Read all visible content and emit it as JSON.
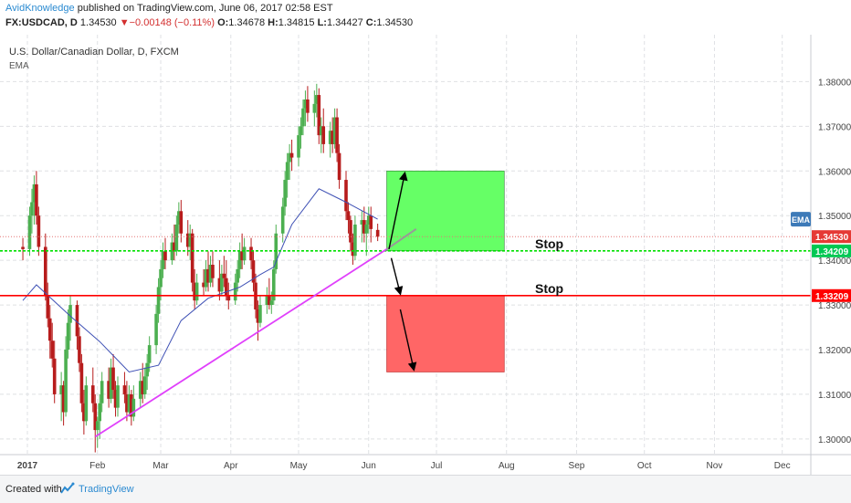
{
  "header": {
    "author": "AvidKnowledge",
    "published": "published on TradingView.com, June 06, 2017 02:58 EST",
    "symbol": "FX:USDCAD, D",
    "last": "1.34530",
    "change": "▼−0.00148 (−0.11%)",
    "o_label": "O:",
    "o": "1.34678",
    "h_label": "H:",
    "h": "1.34815",
    "l_label": "L:",
    "l": "1.34427",
    "c_label": "C:",
    "c": "1.34530"
  },
  "colors": {
    "up": "#4caf50",
    "down": "#b71c1c",
    "ema": "#3f51b5",
    "trendline": "#e040fb",
    "stop_red": "#ff0000",
    "stop_green": "#00e000",
    "target_box": "#66ff66",
    "loss_box": "#ff6666",
    "brand": "#2a8ad1"
  },
  "chart_data": {
    "type": "candlestick",
    "title": "U.S. Dollar/Canadian Dollar, D, FXCM",
    "indicator": "EMA",
    "ylim": [
      1.2965,
      1.3905
    ],
    "y_ticks": [
      "1.30000",
      "1.31000",
      "1.32000",
      "1.33000",
      "1.34000",
      "1.35000",
      "1.36000",
      "1.37000",
      "1.38000"
    ],
    "x_ticks": [
      "2017",
      "Feb",
      "Mar",
      "Apr",
      "May",
      "Jun",
      "Jul",
      "Aug",
      "Sep",
      "Oct",
      "Nov",
      "Dec"
    ],
    "grid": true,
    "price_labels": [
      {
        "text": "1.34530",
        "value": 1.3453,
        "color": "#e53935"
      },
      {
        "text": "1.34209",
        "value": 1.3421,
        "color": "#00c853"
      },
      {
        "text": "1.33209",
        "value": 1.3321,
        "color": "#ff0000"
      }
    ],
    "ema_badge": "EMA",
    "ema_value": 1.3492,
    "green_stop_level": 1.3421,
    "red_stop_level": 1.3321,
    "current_price": 1.3453,
    "annotations": [
      {
        "text": "Stop",
        "value": 1.3421
      },
      {
        "text": "Stop",
        "value": 1.3321
      }
    ],
    "trendline": {
      "x": [
        "2017-01-31",
        "2017-06-09",
        "2017-06-22"
      ],
      "y": [
        1.3005,
        1.3425,
        1.347
      ]
    },
    "target_box": {
      "x": [
        "2017-06-09",
        "2017-07-31"
      ],
      "y": [
        1.3421,
        1.36
      ]
    },
    "loss_box": {
      "x": [
        "2017-06-09",
        "2017-07-31"
      ],
      "y": [
        1.315,
        1.3321
      ]
    },
    "arrows": [
      {
        "x": [
          "2017-06-10",
          "2017-06-17"
        ],
        "y": [
          1.3425,
          1.3595
        ]
      },
      {
        "x": [
          "2017-06-11",
          "2017-06-15"
        ],
        "y": [
          1.3405,
          1.3325
        ]
      },
      {
        "x": [
          "2017-06-15",
          "2017-06-21"
        ],
        "y": [
          1.329,
          1.3155
        ]
      }
    ],
    "ema_anchors": [
      {
        "x": "2016-12-30",
        "y": 1.331
      },
      {
        "x": "2017-01-05",
        "y": 1.3345
      },
      {
        "x": "2017-01-20",
        "y": 1.3275
      },
      {
        "x": "2017-02-02",
        "y": 1.3218
      },
      {
        "x": "2017-02-15",
        "y": 1.315
      },
      {
        "x": "2017-02-28",
        "y": 1.3165
      },
      {
        "x": "2017-03-10",
        "y": 1.3265
      },
      {
        "x": "2017-03-22",
        "y": 1.3315
      },
      {
        "x": "2017-04-05",
        "y": 1.334
      },
      {
        "x": "2017-04-14",
        "y": 1.3368
      },
      {
        "x": "2017-04-20",
        "y": 1.3385
      },
      {
        "x": "2017-04-28",
        "y": 1.348
      },
      {
        "x": "2017-05-10",
        "y": 1.356
      },
      {
        "x": "2017-05-22",
        "y": 1.353
      },
      {
        "x": "2017-06-05",
        "y": 1.3492
      }
    ],
    "ohlc": [
      {
        "x": "2016-12-30",
        "o": 1.343,
        "h": 1.345,
        "l": 1.34,
        "c": 1.3425
      },
      {
        "x": "2017-01-02",
        "o": 1.3425,
        "h": 1.352,
        "l": 1.341,
        "c": 1.35
      },
      {
        "x": "2017-01-03",
        "o": 1.35,
        "h": 1.356,
        "l": 1.346,
        "c": 1.353
      },
      {
        "x": "2017-01-04",
        "o": 1.353,
        "h": 1.359,
        "l": 1.348,
        "c": 1.357
      },
      {
        "x": "2017-01-05",
        "o": 1.357,
        "h": 1.36,
        "l": 1.348,
        "c": 1.35
      },
      {
        "x": "2017-01-06",
        "o": 1.35,
        "h": 1.352,
        "l": 1.341,
        "c": 1.343
      },
      {
        "x": "2017-01-09",
        "o": 1.343,
        "h": 1.346,
        "l": 1.331,
        "c": 1.332
      },
      {
        "x": "2017-01-10",
        "o": 1.332,
        "h": 1.335,
        "l": 1.325,
        "c": 1.327
      },
      {
        "x": "2017-01-11",
        "o": 1.327,
        "h": 1.33,
        "l": 1.318,
        "c": 1.322
      },
      {
        "x": "2017-01-12",
        "o": 1.322,
        "h": 1.326,
        "l": 1.316,
        "c": 1.318
      },
      {
        "x": "2017-01-13",
        "o": 1.318,
        "h": 1.322,
        "l": 1.308,
        "c": 1.31
      },
      {
        "x": "2017-01-16",
        "o": 1.31,
        "h": 1.315,
        "l": 1.304,
        "c": 1.312
      },
      {
        "x": "2017-01-17",
        "o": 1.312,
        "h": 1.313,
        "l": 1.303,
        "c": 1.306
      },
      {
        "x": "2017-01-18",
        "o": 1.306,
        "h": 1.323,
        "l": 1.305,
        "c": 1.32
      },
      {
        "x": "2017-01-19",
        "o": 1.32,
        "h": 1.329,
        "l": 1.318,
        "c": 1.326
      },
      {
        "x": "2017-01-20",
        "o": 1.326,
        "h": 1.332,
        "l": 1.322,
        "c": 1.33
      },
      {
        "x": "2017-01-23",
        "o": 1.33,
        "h": 1.331,
        "l": 1.32,
        "c": 1.323
      },
      {
        "x": "2017-01-24",
        "o": 1.323,
        "h": 1.325,
        "l": 1.315,
        "c": 1.317
      },
      {
        "x": "2017-01-25",
        "o": 1.317,
        "h": 1.319,
        "l": 1.306,
        "c": 1.308
      },
      {
        "x": "2017-01-26",
        "o": 1.308,
        "h": 1.311,
        "l": 1.301,
        "c": 1.304
      },
      {
        "x": "2017-01-27",
        "o": 1.304,
        "h": 1.314,
        "l": 1.303,
        "c": 1.312
      },
      {
        "x": "2017-01-30",
        "o": 1.312,
        "h": 1.316,
        "l": 1.306,
        "c": 1.308
      },
      {
        "x": "2017-01-31",
        "o": 1.308,
        "h": 1.31,
        "l": 1.297,
        "c": 1.302
      },
      {
        "x": "2017-02-01",
        "o": 1.302,
        "h": 1.305,
        "l": 1.298,
        "c": 1.304
      },
      {
        "x": "2017-02-02",
        "o": 1.304,
        "h": 1.31,
        "l": 1.3,
        "c": 1.308
      },
      {
        "x": "2017-02-03",
        "o": 1.308,
        "h": 1.315,
        "l": 1.306,
        "c": 1.313
      },
      {
        "x": "2017-02-06",
        "o": 1.313,
        "h": 1.316,
        "l": 1.307,
        "c": 1.309
      },
      {
        "x": "2017-02-07",
        "o": 1.309,
        "h": 1.318,
        "l": 1.308,
        "c": 1.316
      },
      {
        "x": "2017-02-08",
        "o": 1.316,
        "h": 1.319,
        "l": 1.309,
        "c": 1.311
      },
      {
        "x": "2017-02-09",
        "o": 1.311,
        "h": 1.313,
        "l": 1.305,
        "c": 1.307
      },
      {
        "x": "2017-02-10",
        "o": 1.307,
        "h": 1.314,
        "l": 1.305,
        "c": 1.312
      },
      {
        "x": "2017-02-13",
        "o": 1.312,
        "h": 1.315,
        "l": 1.308,
        "c": 1.31
      },
      {
        "x": "2017-02-14",
        "o": 1.31,
        "h": 1.313,
        "l": 1.304,
        "c": 1.306
      },
      {
        "x": "2017-02-15",
        "o": 1.306,
        "h": 1.312,
        "l": 1.305,
        "c": 1.31
      },
      {
        "x": "2017-02-16",
        "o": 1.31,
        "h": 1.311,
        "l": 1.303,
        "c": 1.305
      },
      {
        "x": "2017-02-17",
        "o": 1.305,
        "h": 1.312,
        "l": 1.304,
        "c": 1.309
      },
      {
        "x": "2017-02-20",
        "o": 1.309,
        "h": 1.315,
        "l": 1.307,
        "c": 1.313
      },
      {
        "x": "2017-02-21",
        "o": 1.313,
        "h": 1.317,
        "l": 1.308,
        "c": 1.31
      },
      {
        "x": "2017-02-22",
        "o": 1.31,
        "h": 1.316,
        "l": 1.309,
        "c": 1.314
      },
      {
        "x": "2017-02-23",
        "o": 1.314,
        "h": 1.319,
        "l": 1.311,
        "c": 1.317
      },
      {
        "x": "2017-02-24",
        "o": 1.317,
        "h": 1.323,
        "l": 1.315,
        "c": 1.321
      },
      {
        "x": "2017-02-27",
        "o": 1.321,
        "h": 1.33,
        "l": 1.319,
        "c": 1.328
      },
      {
        "x": "2017-02-28",
        "o": 1.328,
        "h": 1.336,
        "l": 1.326,
        "c": 1.334
      },
      {
        "x": "2017-03-01",
        "o": 1.334,
        "h": 1.34,
        "l": 1.331,
        "c": 1.338
      },
      {
        "x": "2017-03-02",
        "o": 1.338,
        "h": 1.344,
        "l": 1.336,
        "c": 1.342
      },
      {
        "x": "2017-03-03",
        "o": 1.342,
        "h": 1.345,
        "l": 1.338,
        "c": 1.34
      },
      {
        "x": "2017-03-06",
        "o": 1.34,
        "h": 1.346,
        "l": 1.339,
        "c": 1.344
      },
      {
        "x": "2017-03-07",
        "o": 1.344,
        "h": 1.348,
        "l": 1.34,
        "c": 1.342
      },
      {
        "x": "2017-03-08",
        "o": 1.342,
        "h": 1.35,
        "l": 1.341,
        "c": 1.348
      },
      {
        "x": "2017-03-09",
        "o": 1.348,
        "h": 1.353,
        "l": 1.346,
        "c": 1.351
      },
      {
        "x": "2017-03-10",
        "o": 1.351,
        "h": 1.3535,
        "l": 1.344,
        "c": 1.346
      },
      {
        "x": "2017-03-13",
        "o": 1.346,
        "h": 1.349,
        "l": 1.341,
        "c": 1.343
      },
      {
        "x": "2017-03-14",
        "o": 1.343,
        "h": 1.348,
        "l": 1.34,
        "c": 1.346
      },
      {
        "x": "2017-03-15",
        "o": 1.346,
        "h": 1.347,
        "l": 1.333,
        "c": 1.335
      },
      {
        "x": "2017-03-16",
        "o": 1.335,
        "h": 1.338,
        "l": 1.329,
        "c": 1.331
      },
      {
        "x": "2017-03-17",
        "o": 1.331,
        "h": 1.337,
        "l": 1.33,
        "c": 1.335
      },
      {
        "x": "2017-03-20",
        "o": 1.335,
        "h": 1.338,
        "l": 1.332,
        "c": 1.334
      },
      {
        "x": "2017-03-21",
        "o": 1.334,
        "h": 1.34,
        "l": 1.333,
        "c": 1.338
      },
      {
        "x": "2017-03-22",
        "o": 1.338,
        "h": 1.342,
        "l": 1.333,
        "c": 1.335
      },
      {
        "x": "2017-03-23",
        "o": 1.335,
        "h": 1.341,
        "l": 1.334,
        "c": 1.339
      },
      {
        "x": "2017-03-24",
        "o": 1.339,
        "h": 1.342,
        "l": 1.334,
        "c": 1.336
      },
      {
        "x": "2017-03-27",
        "o": 1.336,
        "h": 1.34,
        "l": 1.331,
        "c": 1.333
      },
      {
        "x": "2017-03-28",
        "o": 1.333,
        "h": 1.339,
        "l": 1.332,
        "c": 1.337
      },
      {
        "x": "2017-03-29",
        "o": 1.337,
        "h": 1.341,
        "l": 1.334,
        "c": 1.336
      },
      {
        "x": "2017-03-30",
        "o": 1.336,
        "h": 1.34,
        "l": 1.331,
        "c": 1.332
      },
      {
        "x": "2017-03-31",
        "o": 1.332,
        "h": 1.335,
        "l": 1.329,
        "c": 1.331
      },
      {
        "x": "2017-04-03",
        "o": 1.331,
        "h": 1.337,
        "l": 1.33,
        "c": 1.335
      },
      {
        "x": "2017-04-04",
        "o": 1.335,
        "h": 1.34,
        "l": 1.333,
        "c": 1.338
      },
      {
        "x": "2017-04-05",
        "o": 1.338,
        "h": 1.344,
        "l": 1.336,
        "c": 1.342
      },
      {
        "x": "2017-04-06",
        "o": 1.342,
        "h": 1.346,
        "l": 1.338,
        "c": 1.34
      },
      {
        "x": "2017-04-07",
        "o": 1.34,
        "h": 1.345,
        "l": 1.339,
        "c": 1.343
      },
      {
        "x": "2017-04-10",
        "o": 1.343,
        "h": 1.345,
        "l": 1.338,
        "c": 1.34
      },
      {
        "x": "2017-04-11",
        "o": 1.34,
        "h": 1.342,
        "l": 1.333,
        "c": 1.335
      },
      {
        "x": "2017-04-12",
        "o": 1.335,
        "h": 1.337,
        "l": 1.327,
        "c": 1.329
      },
      {
        "x": "2017-04-13",
        "o": 1.329,
        "h": 1.331,
        "l": 1.322,
        "c": 1.326
      },
      {
        "x": "2017-04-14",
        "o": 1.326,
        "h": 1.332,
        "l": 1.325,
        "c": 1.33
      },
      {
        "x": "2017-04-17",
        "o": 1.33,
        "h": 1.334,
        "l": 1.328,
        "c": 1.332
      },
      {
        "x": "2017-04-18",
        "o": 1.332,
        "h": 1.336,
        "l": 1.329,
        "c": 1.33
      },
      {
        "x": "2017-04-19",
        "o": 1.33,
        "h": 1.333,
        "l": 1.328,
        "c": 1.331
      },
      {
        "x": "2017-04-20",
        "o": 1.331,
        "h": 1.34,
        "l": 1.33,
        "c": 1.338
      },
      {
        "x": "2017-04-21",
        "o": 1.338,
        "h": 1.348,
        "l": 1.337,
        "c": 1.346
      },
      {
        "x": "2017-04-24",
        "o": 1.346,
        "h": 1.354,
        "l": 1.344,
        "c": 1.352
      },
      {
        "x": "2017-04-25",
        "o": 1.352,
        "h": 1.36,
        "l": 1.35,
        "c": 1.358
      },
      {
        "x": "2017-04-26",
        "o": 1.358,
        "h": 1.364,
        "l": 1.354,
        "c": 1.362
      },
      {
        "x": "2017-04-27",
        "o": 1.362,
        "h": 1.366,
        "l": 1.358,
        "c": 1.364
      },
      {
        "x": "2017-04-28",
        "o": 1.364,
        "h": 1.367,
        "l": 1.36,
        "c": 1.363
      },
      {
        "x": "2017-05-01",
        "o": 1.363,
        "h": 1.37,
        "l": 1.361,
        "c": 1.368
      },
      {
        "x": "2017-05-02",
        "o": 1.368,
        "h": 1.372,
        "l": 1.365,
        "c": 1.37
      },
      {
        "x": "2017-05-03",
        "o": 1.37,
        "h": 1.376,
        "l": 1.368,
        "c": 1.374
      },
      {
        "x": "2017-05-04",
        "o": 1.374,
        "h": 1.378,
        "l": 1.37,
        "c": 1.376
      },
      {
        "x": "2017-05-05",
        "o": 1.376,
        "h": 1.379,
        "l": 1.371,
        "c": 1.373
      },
      {
        "x": "2017-05-08",
        "o": 1.373,
        "h": 1.378,
        "l": 1.37,
        "c": 1.375
      },
      {
        "x": "2017-05-09",
        "o": 1.375,
        "h": 1.3795,
        "l": 1.372,
        "c": 1.377
      },
      {
        "x": "2017-05-10",
        "o": 1.377,
        "h": 1.3785,
        "l": 1.366,
        "c": 1.368
      },
      {
        "x": "2017-05-11",
        "o": 1.368,
        "h": 1.372,
        "l": 1.364,
        "c": 1.37
      },
      {
        "x": "2017-05-12",
        "o": 1.37,
        "h": 1.374,
        "l": 1.364,
        "c": 1.366
      },
      {
        "x": "2017-05-15",
        "o": 1.366,
        "h": 1.371,
        "l": 1.363,
        "c": 1.369
      },
      {
        "x": "2017-05-16",
        "o": 1.369,
        "h": 1.372,
        "l": 1.364,
        "c": 1.366
      },
      {
        "x": "2017-05-17",
        "o": 1.366,
        "h": 1.374,
        "l": 1.365,
        "c": 1.372
      },
      {
        "x": "2017-05-18",
        "o": 1.372,
        "h": 1.374,
        "l": 1.362,
        "c": 1.364
      },
      {
        "x": "2017-05-19",
        "o": 1.364,
        "h": 1.366,
        "l": 1.356,
        "c": 1.358
      },
      {
        "x": "2017-05-22",
        "o": 1.358,
        "h": 1.36,
        "l": 1.349,
        "c": 1.351
      },
      {
        "x": "2017-05-23",
        "o": 1.351,
        "h": 1.353,
        "l": 1.346,
        "c": 1.349
      },
      {
        "x": "2017-05-24",
        "o": 1.349,
        "h": 1.35,
        "l": 1.342,
        "c": 1.344
      },
      {
        "x": "2017-05-25",
        "o": 1.344,
        "h": 1.346,
        "l": 1.339,
        "c": 1.341
      },
      {
        "x": "2017-05-26",
        "o": 1.341,
        "h": 1.35,
        "l": 1.34,
        "c": 1.348
      },
      {
        "x": "2017-05-29",
        "o": 1.348,
        "h": 1.351,
        "l": 1.344,
        "c": 1.349
      },
      {
        "x": "2017-05-30",
        "o": 1.349,
        "h": 1.352,
        "l": 1.344,
        "c": 1.346
      },
      {
        "x": "2017-05-31",
        "o": 1.346,
        "h": 1.349,
        "l": 1.341,
        "c": 1.348
      },
      {
        "x": "2017-06-01",
        "o": 1.348,
        "h": 1.352,
        "l": 1.346,
        "c": 1.35
      },
      {
        "x": "2017-06-02",
        "o": 1.35,
        "h": 1.352,
        "l": 1.344,
        "c": 1.347
      },
      {
        "x": "2017-06-05",
        "o": 1.3468,
        "h": 1.3482,
        "l": 1.3443,
        "c": 1.3453
      }
    ]
  },
  "footer": {
    "created": "Created with",
    "brand": "TradingView"
  }
}
